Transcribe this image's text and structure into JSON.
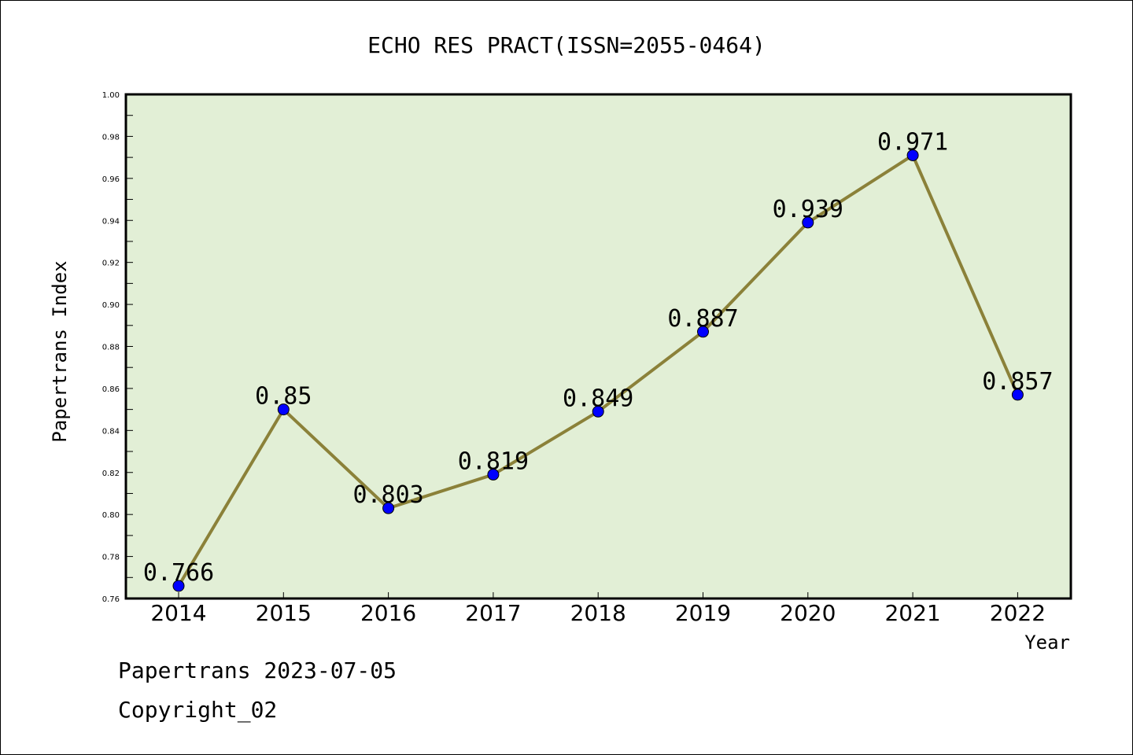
{
  "chart_data": {
    "type": "line",
    "title": "ECHO RES PRACT(ISSN=2055-0464)",
    "xlabel": "Year",
    "ylabel": "Papertrans Index",
    "categories": [
      "2014",
      "2015",
      "2016",
      "2017",
      "2018",
      "2019",
      "2020",
      "2021",
      "2022"
    ],
    "values": [
      0.766,
      0.85,
      0.803,
      0.819,
      0.849,
      0.887,
      0.939,
      0.971,
      0.857
    ],
    "data_labels": [
      "0.766",
      "0.85",
      "0.803",
      "0.819",
      "0.849",
      "0.887",
      "0.939",
      "0.971",
      "0.857"
    ],
    "ylim": [
      0.76,
      1.0
    ],
    "yticks": [
      "0.76",
      "0.78",
      "0.80",
      "0.82",
      "0.84",
      "0.86",
      "0.88",
      "0.90",
      "0.92",
      "0.94",
      "0.96",
      "0.98",
      "1.00"
    ],
    "grid": false,
    "colors": {
      "plot_background": "#e2efd6",
      "line": "#8b8139",
      "marker": "#0000ff"
    }
  },
  "footer": {
    "line1": "Papertrans 2023-07-05",
    "line2": "Copyright_02"
  }
}
